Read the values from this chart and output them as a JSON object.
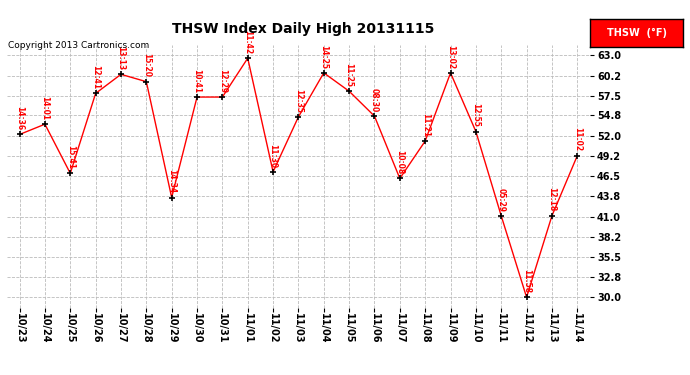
{
  "title": "THSW Index Daily High 20131115",
  "copyright": "Copyright 2013 Cartronics.com",
  "legend_label": "THSW  (°F)",
  "dates": [
    "10/23",
    "10/24",
    "10/25",
    "10/26",
    "10/27",
    "10/28",
    "10/29",
    "10/30",
    "10/31",
    "11/01",
    "11/02",
    "11/03",
    "11/04",
    "11/05",
    "11/06",
    "11/07",
    "11/08",
    "11/09",
    "11/10",
    "11/11",
    "11/12",
    "11/13",
    "11/14"
  ],
  "values": [
    52.2,
    53.6,
    46.9,
    57.8,
    60.4,
    59.4,
    43.6,
    57.3,
    57.3,
    62.6,
    47.1,
    54.6,
    60.6,
    58.1,
    54.7,
    46.2,
    51.3,
    60.6,
    52.6,
    41.1,
    30.0,
    41.1,
    49.3
  ],
  "times": [
    "14:36",
    "14:01",
    "15:41",
    "12:41",
    "13:13",
    "15:20",
    "14:34",
    "10:41",
    "12:29",
    "11:42",
    "11:30",
    "12:35",
    "14:25",
    "11:25",
    "08:30",
    "10:08",
    "11:21",
    "13:02",
    "12:55",
    "05:29",
    "11:58",
    "12:18",
    "11:02"
  ],
  "ylim_min": 28.6,
  "ylim_max": 64.4,
  "yticks": [
    30.0,
    32.8,
    35.5,
    38.2,
    41.0,
    43.8,
    46.5,
    49.2,
    52.0,
    54.8,
    57.5,
    60.2,
    63.0
  ],
  "line_color": "red",
  "marker_color": "black",
  "bg_color": "white",
  "grid_color": "#bbbbbb",
  "label_color": "red",
  "title_color": "black",
  "copyright_color": "black",
  "legend_bg": "red",
  "legend_text_color": "white"
}
